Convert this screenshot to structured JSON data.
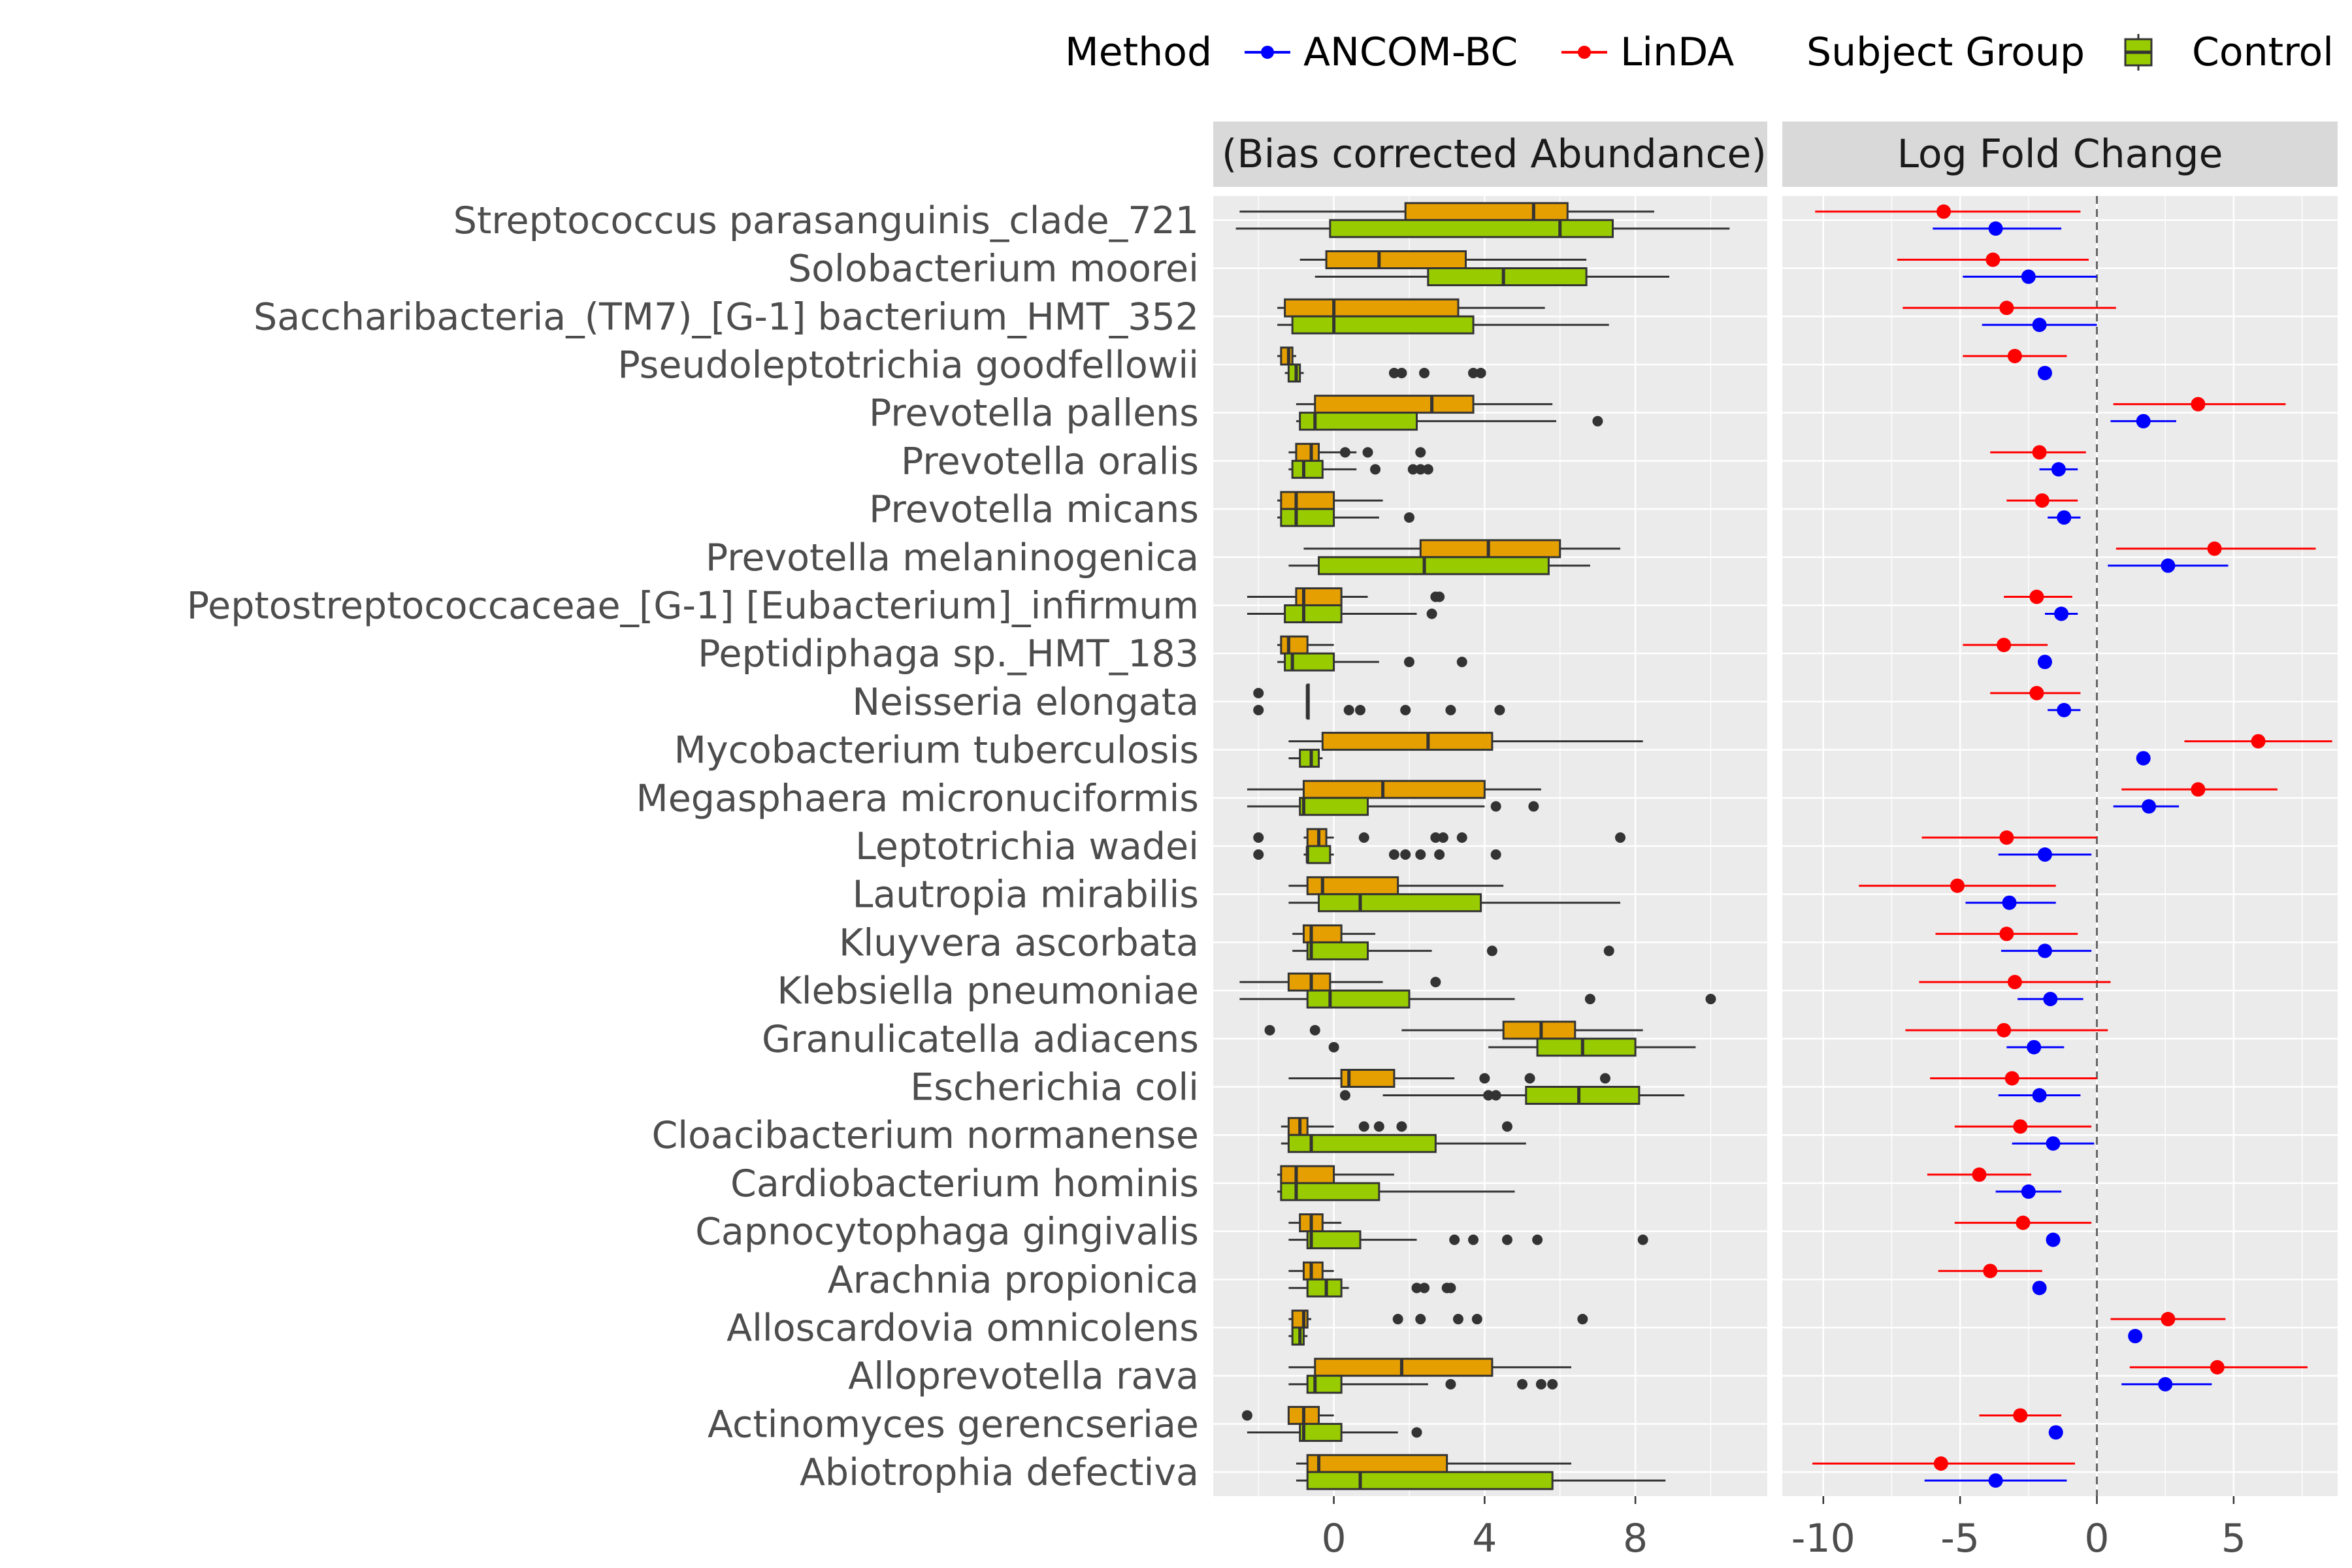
{
  "legend": {
    "method_title": "Method",
    "method_items": [
      {
        "label": "ANCOM-BC",
        "color": "#0000ff"
      },
      {
        "label": "LinDA",
        "color": "#ff0000"
      }
    ],
    "group_title": "Subject Group",
    "group_items": [
      {
        "label": "Control",
        "color": "#99cc00"
      }
    ]
  },
  "panels": {
    "left_strip": "(Bias corrected Abundance)",
    "right_strip": "Log Fold Change"
  },
  "colors": {
    "panel_bg": "#ebebeb",
    "grid": "#ffffff",
    "strip_bg": "#d9d9d9",
    "orange_box": "#e69f00",
    "green_box": "#99cc00",
    "outline": "#333333"
  },
  "chart_data": [
    {
      "type": "box",
      "title": "(Bias corrected Abundance)",
      "xlim": [
        -3.2,
        11.5
      ],
      "xticks": [
        0,
        4,
        8
      ],
      "grid": true,
      "series_colors": {
        "orange": "#e69f00",
        "green": "#99cc00"
      },
      "taxa": [
        "Streptococcus parasanguinis_clade_721",
        "Solobacterium moorei",
        "Saccharibacteria_(TM7)_[G-1] bacterium_HMT_352",
        "Pseudoleptotrichia goodfellowii",
        "Prevotella pallens",
        "Prevotella oralis",
        "Prevotella micans",
        "Prevotella melaninogenica",
        "Peptostreptococcaceae_[G-1] [Eubacterium]_infirmum",
        "Peptidiphaga sp._HMT_183",
        "Neisseria elongata",
        "Mycobacterium tuberculosis",
        "Megasphaera micronuciformis",
        "Leptotrichia wadei",
        "Lautropia mirabilis",
        "Kluyvera ascorbata",
        "Klebsiella pneumoniae",
        "Granulicatella adiacens",
        "Escherichia coli",
        "Cloacibacterium normanense",
        "Cardiobacterium hominis",
        "Capnocytophaga gingivalis",
        "Arachnia propionica",
        "Alloscardovia omnicolens",
        "Alloprevotella rava",
        "Actinomyces gerencseriae",
        "Abiotrophia defectiva"
      ],
      "boxes": [
        {
          "orange": [
            -2.5,
            1.9,
            5.3,
            6.2,
            8.5,
            []
          ],
          "green": [
            -2.6,
            -0.1,
            6.0,
            7.4,
            10.5,
            []
          ]
        },
        {
          "orange": [
            -0.9,
            -0.2,
            1.2,
            3.5,
            6.7,
            []
          ],
          "green": [
            -0.5,
            2.5,
            4.5,
            6.7,
            8.9,
            []
          ]
        },
        {
          "orange": [
            -1.5,
            -1.3,
            0.0,
            3.3,
            5.6,
            []
          ],
          "green": [
            -1.5,
            -1.1,
            0.0,
            3.7,
            7.3,
            []
          ]
        },
        {
          "orange": [
            -1.5,
            -1.4,
            -1.2,
            -1.1,
            -1.0,
            []
          ],
          "green": [
            -1.3,
            -1.2,
            -1.0,
            -0.9,
            -0.8,
            [
              1.6,
              1.8,
              2.4,
              3.7,
              3.9
            ]
          ]
        },
        {
          "orange": [
            -1.0,
            -0.5,
            2.6,
            3.7,
            5.8,
            []
          ],
          "green": [
            -1.0,
            -0.9,
            -0.5,
            2.2,
            5.9,
            [
              7.0
            ]
          ]
        },
        {
          "orange": [
            -1.2,
            -1.0,
            -0.6,
            -0.4,
            0.6,
            [
              0.3,
              0.9,
              2.3
            ]
          ],
          "green": [
            -1.2,
            -1.1,
            -0.8,
            -0.3,
            0.6,
            [
              1.1,
              2.1,
              2.3,
              2.5
            ]
          ]
        },
        {
          "orange": [
            -1.5,
            -1.4,
            -1.0,
            0.0,
            1.3,
            []
          ],
          "green": [
            -1.5,
            -1.4,
            -1.0,
            0.0,
            1.2,
            [
              2.0
            ]
          ]
        },
        {
          "orange": [
            -0.8,
            2.3,
            4.1,
            6.0,
            7.6,
            []
          ],
          "green": [
            -1.2,
            -0.4,
            2.4,
            5.7,
            6.8,
            []
          ]
        },
        {
          "orange": [
            -2.3,
            -1.0,
            -0.8,
            0.2,
            0.9,
            [
              2.7,
              2.8
            ]
          ],
          "green": [
            -2.3,
            -1.3,
            -0.8,
            0.2,
            2.2,
            [
              2.6
            ]
          ]
        },
        {
          "orange": [
            -1.5,
            -1.4,
            -1.2,
            -0.7,
            0.0,
            []
          ],
          "green": [
            -1.5,
            -1.3,
            -1.1,
            0.0,
            1.2,
            [
              2.0,
              3.4
            ]
          ]
        },
        {
          "orange": [
            -0.7,
            -0.7,
            -0.7,
            -0.7,
            -0.7,
            [
              -2.0
            ]
          ],
          "green": [
            -0.7,
            -0.7,
            -0.7,
            -0.7,
            -0.7,
            [
              -2.0,
              0.4,
              0.7,
              1.9,
              3.1,
              4.4
            ]
          ]
        },
        {
          "orange": [
            -1.2,
            -0.3,
            2.5,
            4.2,
            8.2,
            []
          ],
          "green": [
            -1.2,
            -0.9,
            -0.6,
            -0.4,
            -0.3,
            []
          ]
        },
        {
          "orange": [
            -2.3,
            -0.8,
            1.3,
            4.0,
            5.5,
            []
          ],
          "green": [
            -2.3,
            -0.9,
            -0.8,
            0.9,
            4.0,
            [
              4.3,
              5.3
            ]
          ]
        },
        {
          "orange": [
            -0.8,
            -0.7,
            -0.4,
            -0.2,
            0.0,
            [
              -2.0,
              0.8,
              2.7,
              2.9,
              3.4,
              7.6
            ]
          ],
          "green": [
            -0.8,
            -0.7,
            -0.7,
            -0.1,
            0.0,
            [
              -2.0,
              1.6,
              1.9,
              2.3,
              2.8,
              4.3
            ]
          ]
        },
        {
          "orange": [
            -1.2,
            -0.7,
            -0.3,
            1.7,
            4.5,
            []
          ],
          "green": [
            -1.2,
            -0.4,
            0.7,
            3.9,
            7.6,
            []
          ]
        },
        {
          "orange": [
            -1.1,
            -0.8,
            -0.6,
            0.2,
            1.1,
            []
          ],
          "green": [
            -1.1,
            -0.7,
            -0.6,
            0.9,
            2.6,
            [
              4.2,
              7.3
            ]
          ]
        },
        {
          "orange": [
            -2.5,
            -1.2,
            -0.6,
            -0.1,
            1.3,
            [
              2.7
            ]
          ],
          "green": [
            -2.5,
            -0.7,
            -0.1,
            2.0,
            4.8,
            [
              6.8,
              10.0
            ]
          ]
        },
        {
          "orange": [
            1.8,
            4.5,
            5.5,
            6.4,
            8.2,
            [
              -0.5,
              -1.7
            ]
          ],
          "green": [
            4.1,
            5.4,
            6.6,
            8.0,
            9.6,
            [
              0.0
            ]
          ]
        },
        {
          "orange": [
            -1.2,
            0.2,
            0.4,
            1.6,
            3.2,
            [
              4.0,
              5.2,
              7.2
            ]
          ],
          "green": [
            1.3,
            5.1,
            6.5,
            8.1,
            9.3,
            [
              0.3,
              4.1,
              4.3
            ]
          ]
        },
        {
          "orange": [
            -1.4,
            -1.2,
            -0.9,
            -0.7,
            0.0,
            [
              0.8,
              1.2,
              1.8,
              4.6
            ]
          ],
          "green": [
            -1.4,
            -1.2,
            -0.6,
            2.7,
            5.1,
            []
          ]
        },
        {
          "orange": [
            -1.5,
            -1.4,
            -1.0,
            0.0,
            1.6,
            []
          ],
          "green": [
            -1.5,
            -1.4,
            -1.0,
            1.2,
            4.8,
            []
          ]
        },
        {
          "orange": [
            -1.2,
            -0.9,
            -0.6,
            -0.3,
            0.2,
            []
          ],
          "green": [
            -1.2,
            -0.7,
            -0.6,
            0.7,
            2.2,
            [
              3.2,
              3.7,
              4.6,
              5.4,
              8.2
            ]
          ]
        },
        {
          "orange": [
            -1.2,
            -0.8,
            -0.6,
            -0.3,
            0.0,
            []
          ],
          "green": [
            -1.2,
            -0.7,
            -0.2,
            0.2,
            0.4,
            [
              2.2,
              2.4,
              3.0,
              3.1
            ]
          ]
        },
        {
          "orange": [
            -1.2,
            -1.1,
            -0.8,
            -0.7,
            -0.6,
            [
              1.7,
              2.3,
              3.3,
              3.8,
              6.6
            ]
          ],
          "green": [
            -1.2,
            -1.1,
            -0.9,
            -0.8,
            -0.7,
            []
          ]
        },
        {
          "orange": [
            -1.2,
            -0.5,
            1.8,
            4.2,
            6.3,
            []
          ],
          "green": [
            -1.2,
            -0.7,
            -0.5,
            0.2,
            2.5,
            [
              3.1,
              5.0,
              5.5,
              5.8
            ]
          ]
        },
        {
          "orange": [
            -1.2,
            -1.2,
            -0.8,
            -0.4,
            0.0,
            [
              -2.3
            ]
          ],
          "green": [
            -2.3,
            -0.9,
            -0.8,
            0.2,
            1.7,
            [
              2.2
            ]
          ]
        },
        {
          "orange": [
            -1.0,
            -0.7,
            -0.4,
            3.0,
            6.3,
            []
          ],
          "green": [
            -1.0,
            -0.7,
            0.7,
            5.8,
            8.8,
            []
          ]
        }
      ]
    },
    {
      "type": "scatter",
      "title": "Log Fold Change",
      "xlim": [
        -11.5,
        8.8
      ],
      "xticks": [
        -10,
        -5,
        0,
        5
      ],
      "reference_line": 0,
      "grid": true,
      "series": [
        {
          "name": "LinDA",
          "color": "#ff0000",
          "points": [
            [
              -5.6,
              -10.3,
              -0.6
            ],
            [
              -3.8,
              -7.3,
              -0.3
            ],
            [
              -3.3,
              -7.1,
              0.7
            ],
            [
              -3.0,
              -4.9,
              -1.1
            ],
            [
              3.7,
              0.6,
              6.9
            ],
            [
              -2.1,
              -3.9,
              -0.4
            ],
            [
              -2.0,
              -3.3,
              -0.7
            ],
            [
              4.3,
              0.7,
              8.0
            ],
            [
              -2.2,
              -3.4,
              -0.9
            ],
            [
              -3.4,
              -4.9,
              -1.8
            ],
            [
              -2.2,
              -3.9,
              -0.6
            ],
            [
              5.9,
              3.2,
              8.6
            ],
            [
              3.7,
              0.9,
              6.6
            ],
            [
              -3.3,
              -6.4,
              0.0
            ],
            [
              -5.1,
              -8.7,
              -1.5
            ],
            [
              -3.3,
              -5.9,
              -0.7
            ],
            [
              -3.0,
              -6.5,
              0.5
            ],
            [
              -3.4,
              -7.0,
              0.4
            ],
            [
              -3.1,
              -6.1,
              0.0
            ],
            [
              -2.8,
              -5.2,
              -0.2
            ],
            [
              -4.3,
              -6.2,
              -2.4
            ],
            [
              -2.7,
              -5.2,
              -0.2
            ],
            [
              -3.9,
              -5.8,
              -2.0
            ],
            [
              2.6,
              0.5,
              4.7
            ],
            [
              4.4,
              1.2,
              7.7
            ],
            [
              -2.8,
              -4.3,
              -1.3
            ],
            [
              -5.7,
              -10.4,
              -0.8
            ]
          ]
        },
        {
          "name": "ANCOM-BC",
          "color": "#0000ff",
          "points": [
            [
              -3.7,
              -6.0,
              -1.3
            ],
            [
              -2.5,
              -4.9,
              0.0
            ],
            [
              -2.1,
              -4.2,
              0.0
            ],
            [
              -1.9,
              null,
              null
            ],
            [
              1.7,
              0.5,
              2.9
            ],
            [
              -1.4,
              -2.1,
              -0.7
            ],
            [
              -1.2,
              -1.8,
              -0.6
            ],
            [
              2.6,
              0.4,
              4.8
            ],
            [
              -1.3,
              -1.9,
              -0.7
            ],
            [
              -1.9,
              null,
              null
            ],
            [
              -1.2,
              -1.8,
              -0.6
            ],
            [
              1.7,
              null,
              null
            ],
            [
              1.9,
              0.6,
              3.0
            ],
            [
              -1.9,
              -3.6,
              -0.2
            ],
            [
              -3.2,
              -4.8,
              -1.5
            ],
            [
              -1.9,
              -3.5,
              -0.2
            ],
            [
              -1.7,
              -2.9,
              -0.5
            ],
            [
              -2.3,
              -3.3,
              -1.2
            ],
            [
              -2.1,
              -3.6,
              -0.6
            ],
            [
              -1.6,
              -3.1,
              -0.1
            ],
            [
              -2.5,
              -3.7,
              -1.3
            ],
            [
              -1.6,
              null,
              null
            ],
            [
              -2.1,
              null,
              null
            ],
            [
              1.4,
              null,
              null
            ],
            [
              2.5,
              0.9,
              4.2
            ],
            [
              -1.5,
              null,
              null
            ],
            [
              -3.7,
              -6.3,
              -1.1
            ]
          ]
        }
      ]
    }
  ]
}
